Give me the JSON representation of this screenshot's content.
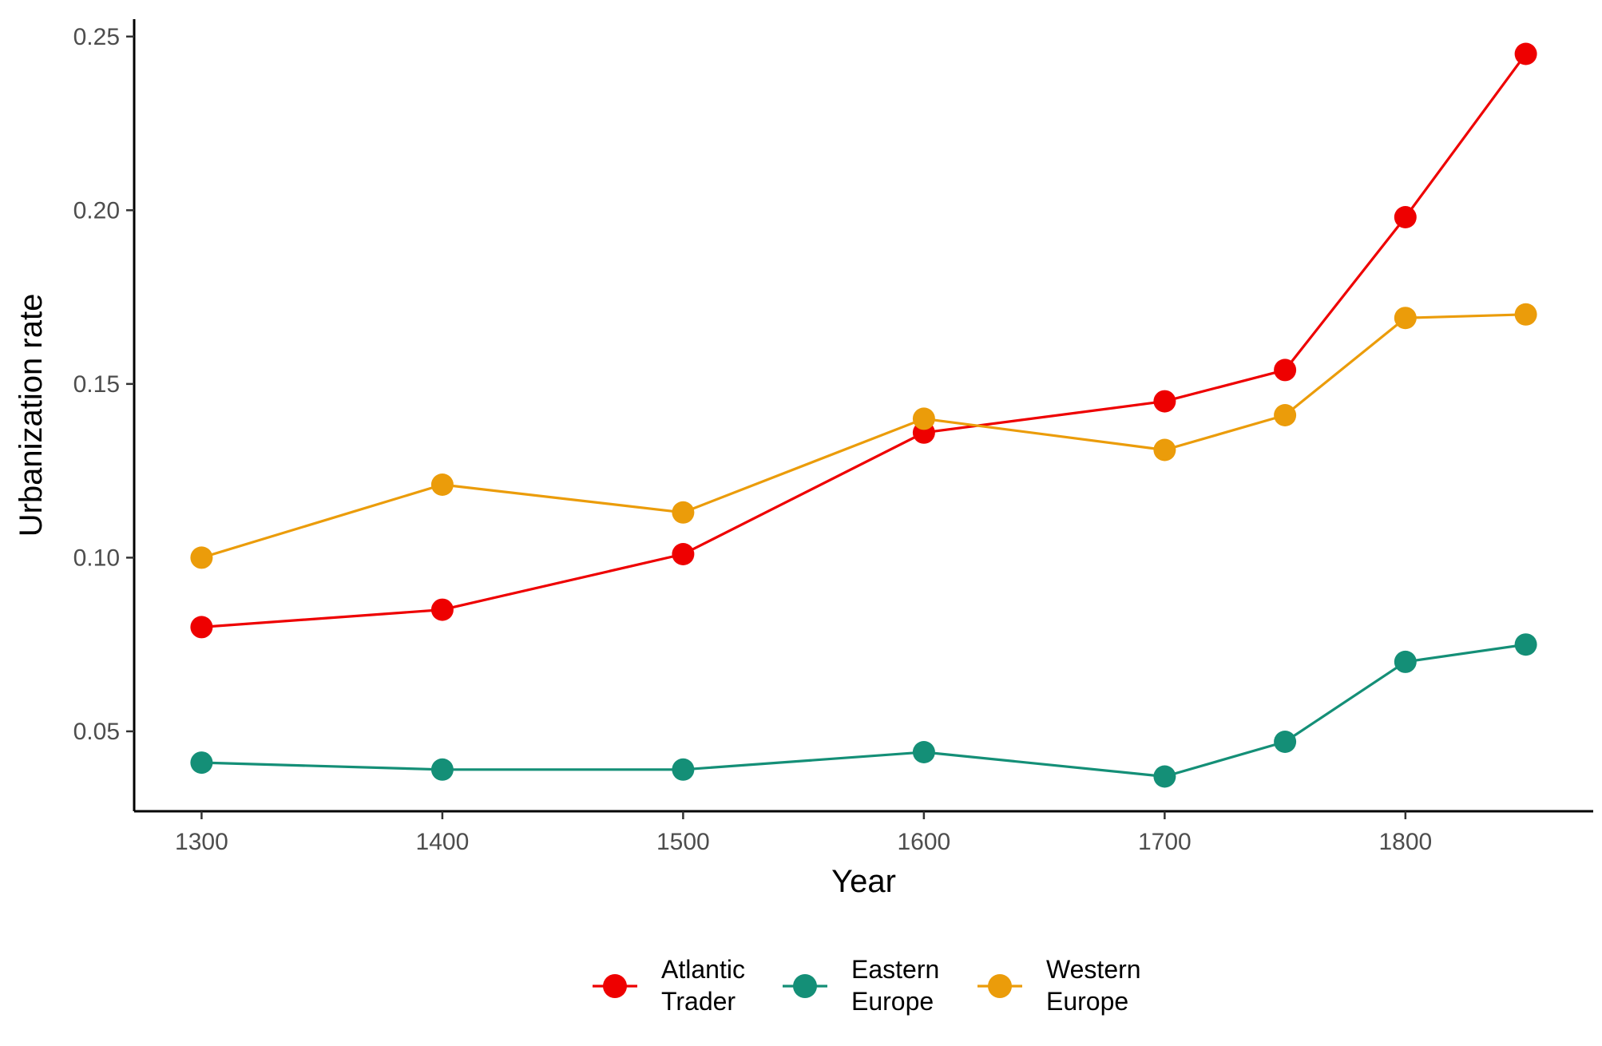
{
  "chart_data": {
    "type": "line",
    "xlabel": "Year",
    "ylabel": "Urbanization rate",
    "xlim": [
      1272,
      1878
    ],
    "ylim": [
      0.027,
      0.255
    ],
    "x_ticks": [
      1300,
      1400,
      1500,
      1600,
      1700,
      1800
    ],
    "x_tick_labels": [
      "1300",
      "1400",
      "1500",
      "1600",
      "1700",
      "1800"
    ],
    "y_ticks": [
      0.05,
      0.1,
      0.15,
      0.2,
      0.25
    ],
    "y_tick_labels": [
      "0.05",
      "0.10",
      "0.15",
      "0.20",
      "0.25"
    ],
    "grid": false,
    "legend_position": "bottom",
    "series": [
      {
        "name_lines": [
          "Atlantic",
          "Trader"
        ],
        "color": "#ee0000",
        "x": [
          1300,
          1400,
          1500,
          1600,
          1700,
          1750,
          1800,
          1850
        ],
        "values": [
          0.08,
          0.085,
          0.101,
          0.136,
          0.145,
          0.154,
          0.198,
          0.245
        ]
      },
      {
        "name_lines": [
          "Eastern",
          "Europe"
        ],
        "color": "#148f77",
        "x": [
          1300,
          1400,
          1500,
          1600,
          1700,
          1750,
          1800,
          1850
        ],
        "values": [
          0.041,
          0.039,
          0.039,
          0.044,
          0.037,
          0.047,
          0.07,
          0.075
        ]
      },
      {
        "name_lines": [
          "Western",
          "Europe"
        ],
        "color": "#eb9c0a",
        "x": [
          1300,
          1400,
          1500,
          1600,
          1700,
          1750,
          1800,
          1850
        ],
        "values": [
          0.1,
          0.121,
          0.113,
          0.14,
          0.131,
          0.141,
          0.169,
          0.17
        ]
      }
    ]
  }
}
